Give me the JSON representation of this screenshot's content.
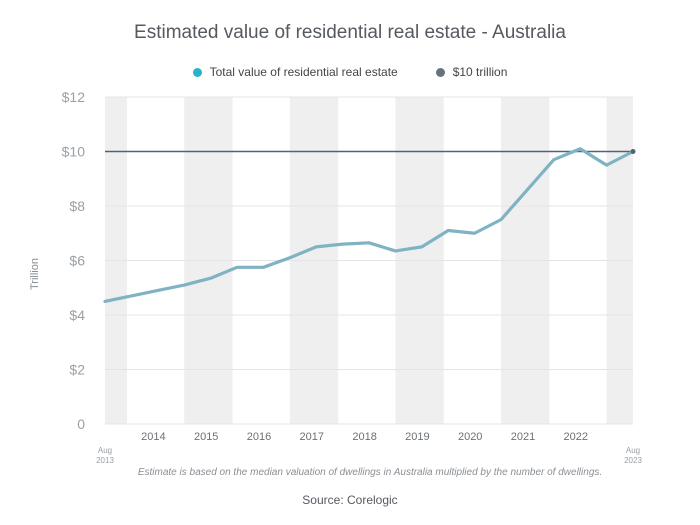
{
  "chart_data": {
    "type": "line",
    "title": "Estimated value of residential real estate - Australia",
    "ylabel": "Trillion",
    "xlabel": "",
    "ylim": [
      0,
      12
    ],
    "y_ticks": [
      "0",
      "$2",
      "$4",
      "$6",
      "$8",
      "$10",
      "$12"
    ],
    "x_range": [
      "2013-08",
      "2023-08"
    ],
    "x_tick_labels": [
      "2014",
      "2015",
      "2016",
      "2017",
      "2018",
      "2019",
      "2020",
      "2021",
      "2022"
    ],
    "x_end_labels": {
      "start": [
        "Aug",
        "2013"
      ],
      "end": [
        "Aug",
        "2023"
      ]
    },
    "grid": true,
    "legend_position": "top",
    "series": [
      {
        "name": "Total value of residential real estate",
        "color": "#7fb3c4",
        "x": [
          "2013-08",
          "2014-02",
          "2014-08",
          "2015-02",
          "2015-08",
          "2016-02",
          "2016-08",
          "2017-02",
          "2017-08",
          "2018-02",
          "2018-08",
          "2019-02",
          "2019-08",
          "2020-02",
          "2020-08",
          "2021-02",
          "2021-08",
          "2022-02",
          "2022-08",
          "2023-02",
          "2023-08"
        ],
        "values": [
          4.5,
          4.7,
          4.9,
          5.1,
          5.35,
          5.75,
          5.75,
          6.1,
          6.5,
          6.6,
          6.65,
          6.35,
          6.5,
          7.1,
          7.0,
          7.5,
          8.6,
          9.7,
          10.1,
          9.5,
          10.0
        ]
      },
      {
        "name": "$10 trillion",
        "color": "#4f6472",
        "type": "reference_line",
        "value": 10
      }
    ],
    "note": "Estimate is based on the median valuation of dwellings in Australia multiplied by the number of dwellings.",
    "source": "Source: Corelogic"
  }
}
